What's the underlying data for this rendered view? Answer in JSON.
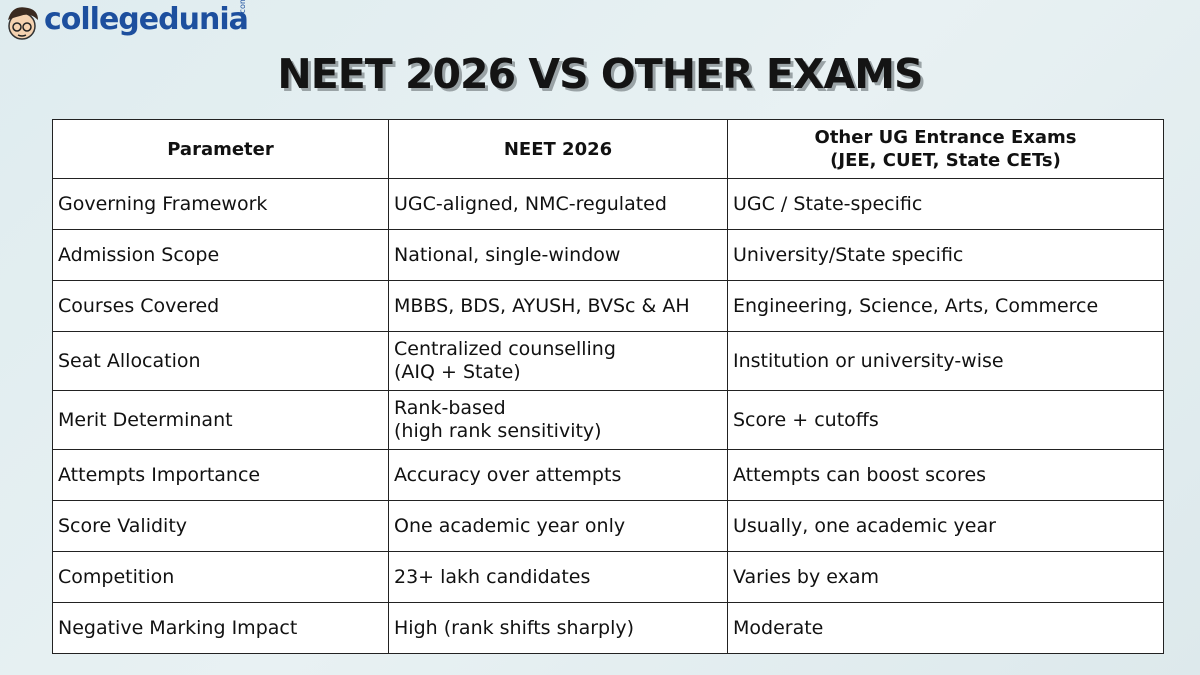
{
  "logo": {
    "name": "collegedunia",
    "suffix": ".com"
  },
  "title": "NEET 2026 VS OTHER EXAMS",
  "table": {
    "header": [
      [
        "Parameter"
      ],
      [
        "NEET 2026"
      ],
      [
        "Other UG Entrance Exams",
        "(JEE, CUET, State CETs)"
      ]
    ],
    "rows": [
      [
        [
          "Governing Framework"
        ],
        [
          "UGC-aligned, NMC-regulated"
        ],
        [
          "UGC / State-specific"
        ]
      ],
      [
        [
          "Admission Scope"
        ],
        [
          "National, single-window"
        ],
        [
          "University/State specific"
        ]
      ],
      [
        [
          "Courses Covered"
        ],
        [
          "MBBS, BDS, AYUSH, BVSc & AH"
        ],
        [
          "Engineering, Science, Arts, Commerce"
        ]
      ],
      [
        [
          "Seat Allocation"
        ],
        [
          "Centralized counselling",
          "(AIQ + State)"
        ],
        [
          "Institution or university-wise"
        ]
      ],
      [
        [
          "Merit Determinant"
        ],
        [
          "Rank-based",
          "(high rank sensitivity)"
        ],
        [
          "Score + cutoffs"
        ]
      ],
      [
        [
          "Attempts Importance"
        ],
        [
          "Accuracy over attempts"
        ],
        [
          "Attempts can boost scores"
        ]
      ],
      [
        [
          "Score Validity"
        ],
        [
          "One academic year only"
        ],
        [
          "Usually, one academic year"
        ]
      ],
      [
        [
          "Competition"
        ],
        [
          "23+ lakh candidates"
        ],
        [
          "Varies by exam"
        ]
      ],
      [
        [
          "Negative Marking Impact"
        ],
        [
          "High (rank shifts sharply)"
        ],
        [
          "Moderate"
        ]
      ]
    ]
  }
}
